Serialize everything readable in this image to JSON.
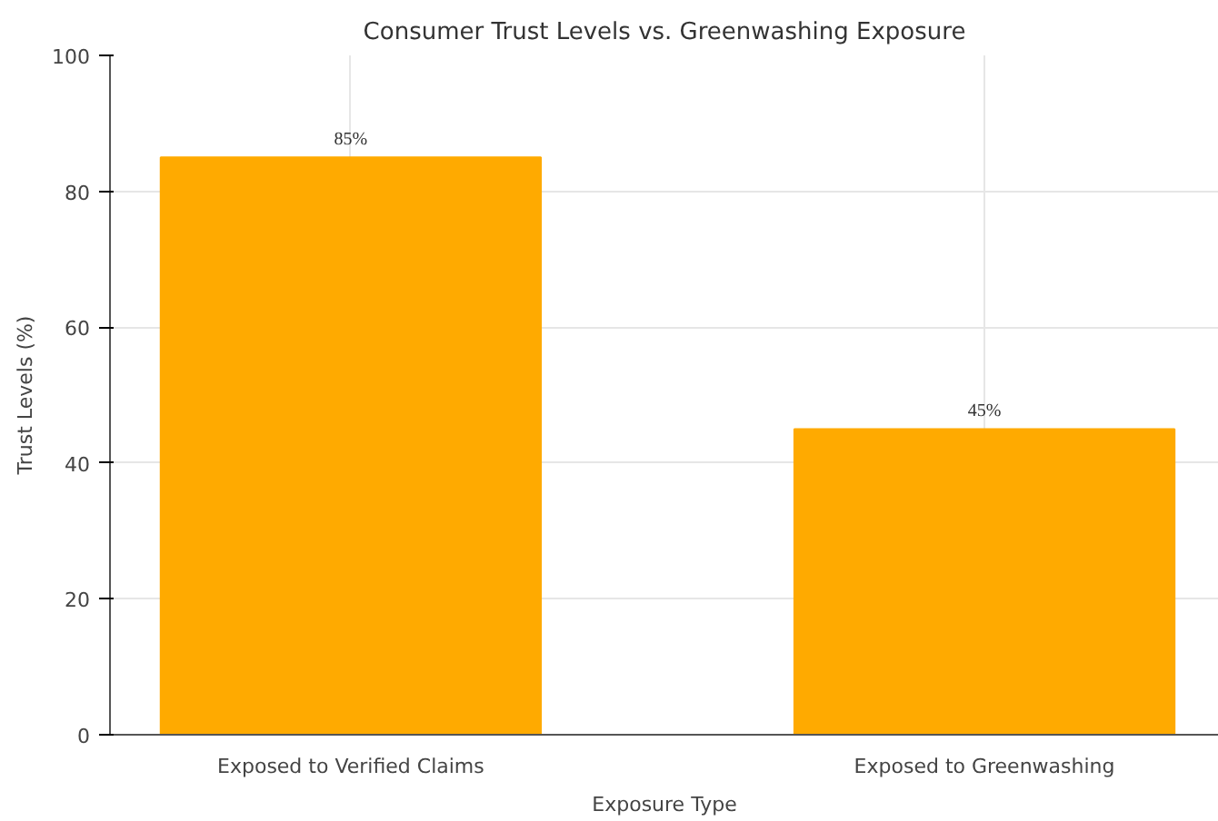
{
  "chart_data": {
    "type": "bar",
    "title": "Consumer Trust Levels vs. Greenwashing Exposure",
    "xlabel": "Exposure Type",
    "ylabel": "Trust Levels (%)",
    "categories": [
      "Exposed to Verified Claims",
      "Exposed to Greenwashing"
    ],
    "values": [
      85,
      45
    ],
    "color": "#ffaa00",
    "value_labels": [
      "85%",
      "45%"
    ],
    "ylim": [
      0,
      100
    ],
    "yticks": [
      0,
      20,
      40,
      60,
      80,
      100
    ],
    "grid": true
  }
}
